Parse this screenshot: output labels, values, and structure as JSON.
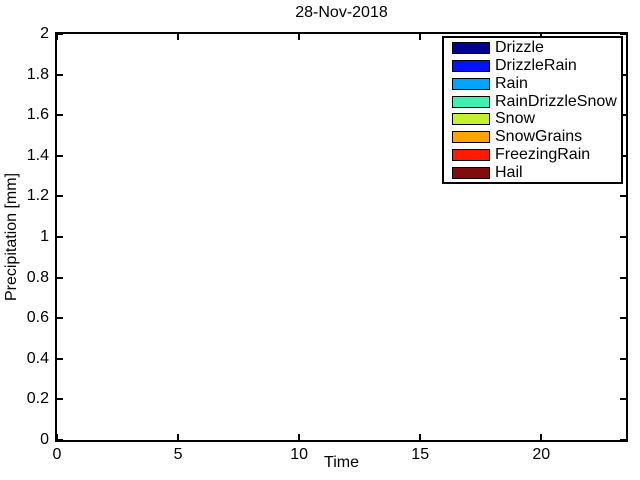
{
  "figure": {
    "background": "#ffffff",
    "axis_color": "#000000",
    "text_color": "#000000"
  },
  "chart_data": {
    "type": "bar",
    "title": "28-Nov-2018",
    "xlabel": "Time",
    "ylabel": "Precipitation [mm]",
    "xlim": [
      0,
      23.5
    ],
    "ylim": [
      0,
      2
    ],
    "x_ticks": [
      {
        "value": 0,
        "label": "0"
      },
      {
        "value": 5,
        "label": "5"
      },
      {
        "value": 10,
        "label": "10"
      },
      {
        "value": 15,
        "label": "15"
      },
      {
        "value": 20,
        "label": "20"
      }
    ],
    "y_ticks": [
      {
        "value": 0,
        "label": "0"
      },
      {
        "value": 0.2,
        "label": "0.2"
      },
      {
        "value": 0.4,
        "label": "0.4"
      },
      {
        "value": 0.6,
        "label": "0.6"
      },
      {
        "value": 0.8,
        "label": "0.8"
      },
      {
        "value": 1,
        "label": "1"
      },
      {
        "value": 1.2,
        "label": "1.2"
      },
      {
        "value": 1.4,
        "label": "1.4"
      },
      {
        "value": 1.6,
        "label": "1.6"
      },
      {
        "value": 1.8,
        "label": "1.8"
      },
      {
        "value": 2,
        "label": "2"
      }
    ],
    "grid": false,
    "legend_position": "top-right",
    "series": [
      {
        "name": "Drizzle",
        "color": "#00008F",
        "values": []
      },
      {
        "name": "DrizzleRain",
        "color": "#0012FF",
        "values": []
      },
      {
        "name": "Rain",
        "color": "#00A5FF",
        "values": []
      },
      {
        "name": "RainDrizzleSnow",
        "color": "#40F0B0",
        "values": []
      },
      {
        "name": "Snow",
        "color": "#C3F22C",
        "values": []
      },
      {
        "name": "SnowGrains",
        "color": "#FFA300",
        "values": []
      },
      {
        "name": "FreezingRain",
        "color": "#FF1A00",
        "values": []
      },
      {
        "name": "Hail",
        "color": "#800D0D",
        "values": []
      }
    ]
  }
}
